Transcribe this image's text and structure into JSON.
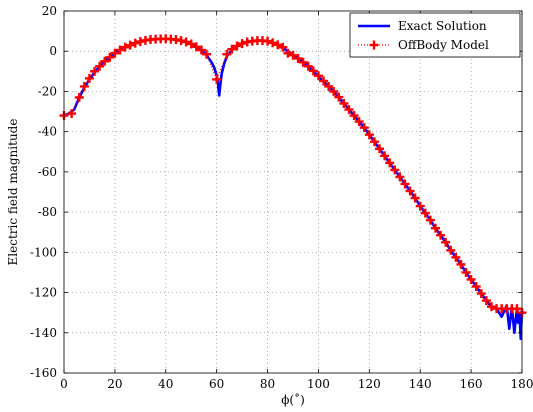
{
  "chart_data": {
    "type": "line",
    "title": "",
    "xlabel": "ϕ(˚)",
    "ylabel": "Electric field magnitude",
    "xlim": [
      0,
      180
    ],
    "ylim": [
      -160,
      20
    ],
    "xticks": [
      0,
      20,
      40,
      60,
      80,
      100,
      120,
      140,
      160,
      180
    ],
    "yticks": [
      20,
      0,
      -20,
      -40,
      -60,
      -80,
      -100,
      -120,
      -140,
      -160
    ],
    "grid": true,
    "legend_position": "top-right",
    "series": [
      {
        "name": "Exact Solution",
        "style": "solid",
        "color": "#0000ff",
        "x": [
          0,
          2,
          4,
          6,
          8,
          10,
          12,
          14,
          16,
          18,
          20,
          22,
          24,
          26,
          28,
          30,
          32,
          34,
          36,
          38,
          40,
          42,
          44,
          46,
          48,
          50,
          52,
          54,
          56,
          58,
          59,
          60,
          60.5,
          61,
          61.5,
          62,
          63,
          64,
          66,
          68,
          70,
          72,
          74,
          76,
          78,
          80,
          82,
          84,
          86,
          88,
          90,
          92,
          94,
          96,
          98,
          100,
          102,
          104,
          106,
          108,
          110,
          112,
          114,
          116,
          118,
          120,
          122,
          124,
          126,
          128,
          130,
          132,
          134,
          136,
          138,
          140,
          142,
          144,
          146,
          148,
          150,
          152,
          154,
          156,
          158,
          160,
          162,
          164,
          166,
          168,
          170,
          172,
          174,
          175,
          176,
          177,
          178,
          178.5,
          179,
          179.5,
          180
        ],
        "y": [
          -32,
          -31,
          -29,
          -23,
          -18,
          -14,
          -10.5,
          -7.5,
          -5,
          -3,
          -1.2,
          0.4,
          1.8,
          3,
          4,
          4.8,
          5.4,
          5.8,
          6,
          6.1,
          6.2,
          6,
          5.7,
          5.2,
          4.5,
          3.5,
          2.2,
          0.4,
          -2,
          -5.5,
          -8,
          -12,
          -16,
          -22,
          -16,
          -11,
          -6,
          -2.5,
          0.5,
          2.5,
          3.8,
          4.6,
          5.1,
          5.3,
          5.3,
          4.9,
          4,
          3,
          1.5,
          0,
          -1.8,
          -3.5,
          -5.3,
          -7.5,
          -10,
          -12.5,
          -15,
          -17.5,
          -20,
          -23,
          -26,
          -29,
          -32,
          -35,
          -38,
          -41.5,
          -45,
          -48.5,
          -52,
          -55.5,
          -59,
          -62.5,
          -66,
          -69.5,
          -73,
          -77,
          -80.5,
          -84,
          -88,
          -91.5,
          -95,
          -99,
          -102.5,
          -106,
          -110,
          -113.5,
          -117,
          -120.5,
          -124,
          -127,
          -128,
          -132,
          -126.5,
          -138,
          -127,
          -140,
          -128,
          -135,
          -130,
          -143,
          -128
        ]
      },
      {
        "name": "OffBody Model",
        "style": "dotted-markers",
        "color": "#ff0000",
        "x": [
          0,
          3,
          6,
          8,
          10,
          12,
          14,
          16,
          18,
          20,
          22,
          24,
          26,
          28,
          30,
          32,
          34,
          36,
          38,
          40,
          42,
          44,
          46,
          48,
          50,
          52,
          54,
          56,
          60,
          64,
          66,
          68,
          70,
          72,
          74,
          76,
          78,
          80,
          82,
          84,
          86,
          88,
          90,
          92,
          94,
          96,
          98,
          100,
          102,
          104,
          106,
          108,
          110,
          112,
          114,
          116,
          118,
          120,
          122,
          124,
          126,
          128,
          130,
          132,
          134,
          136,
          138,
          140,
          142,
          144,
          146,
          148,
          150,
          152,
          154,
          156,
          158,
          160,
          162,
          164,
          166,
          168,
          170,
          172,
          174,
          176,
          178,
          180
        ],
        "y": [
          -32,
          -31,
          -23,
          -17.5,
          -13.5,
          -10,
          -7.5,
          -5,
          -3,
          -1,
          0.6,
          2,
          3,
          4,
          4.8,
          5.4,
          5.8,
          6,
          6.1,
          6.2,
          6,
          5.8,
          5.3,
          4.6,
          3.6,
          2.2,
          0.6,
          -1.5,
          -14,
          -1.5,
          1,
          2.6,
          3.8,
          4.6,
          5,
          5.3,
          5.3,
          5,
          4.2,
          3.2,
          2,
          -1,
          -2,
          -3.6,
          -5.5,
          -7.5,
          -9.8,
          -12.2,
          -14.8,
          -17.5,
          -20,
          -22.8,
          -26,
          -29,
          -32,
          -35,
          -38,
          -41.5,
          -45,
          -48.5,
          -52,
          -55.5,
          -59,
          -62.5,
          -66,
          -69.5,
          -73,
          -77,
          -80.5,
          -84,
          -88,
          -91.5,
          -95,
          -99,
          -102.5,
          -106,
          -110,
          -113.5,
          -117,
          -120.5,
          -124,
          -127,
          -128,
          -128,
          -128,
          -128,
          -128,
          -130
        ]
      }
    ]
  }
}
